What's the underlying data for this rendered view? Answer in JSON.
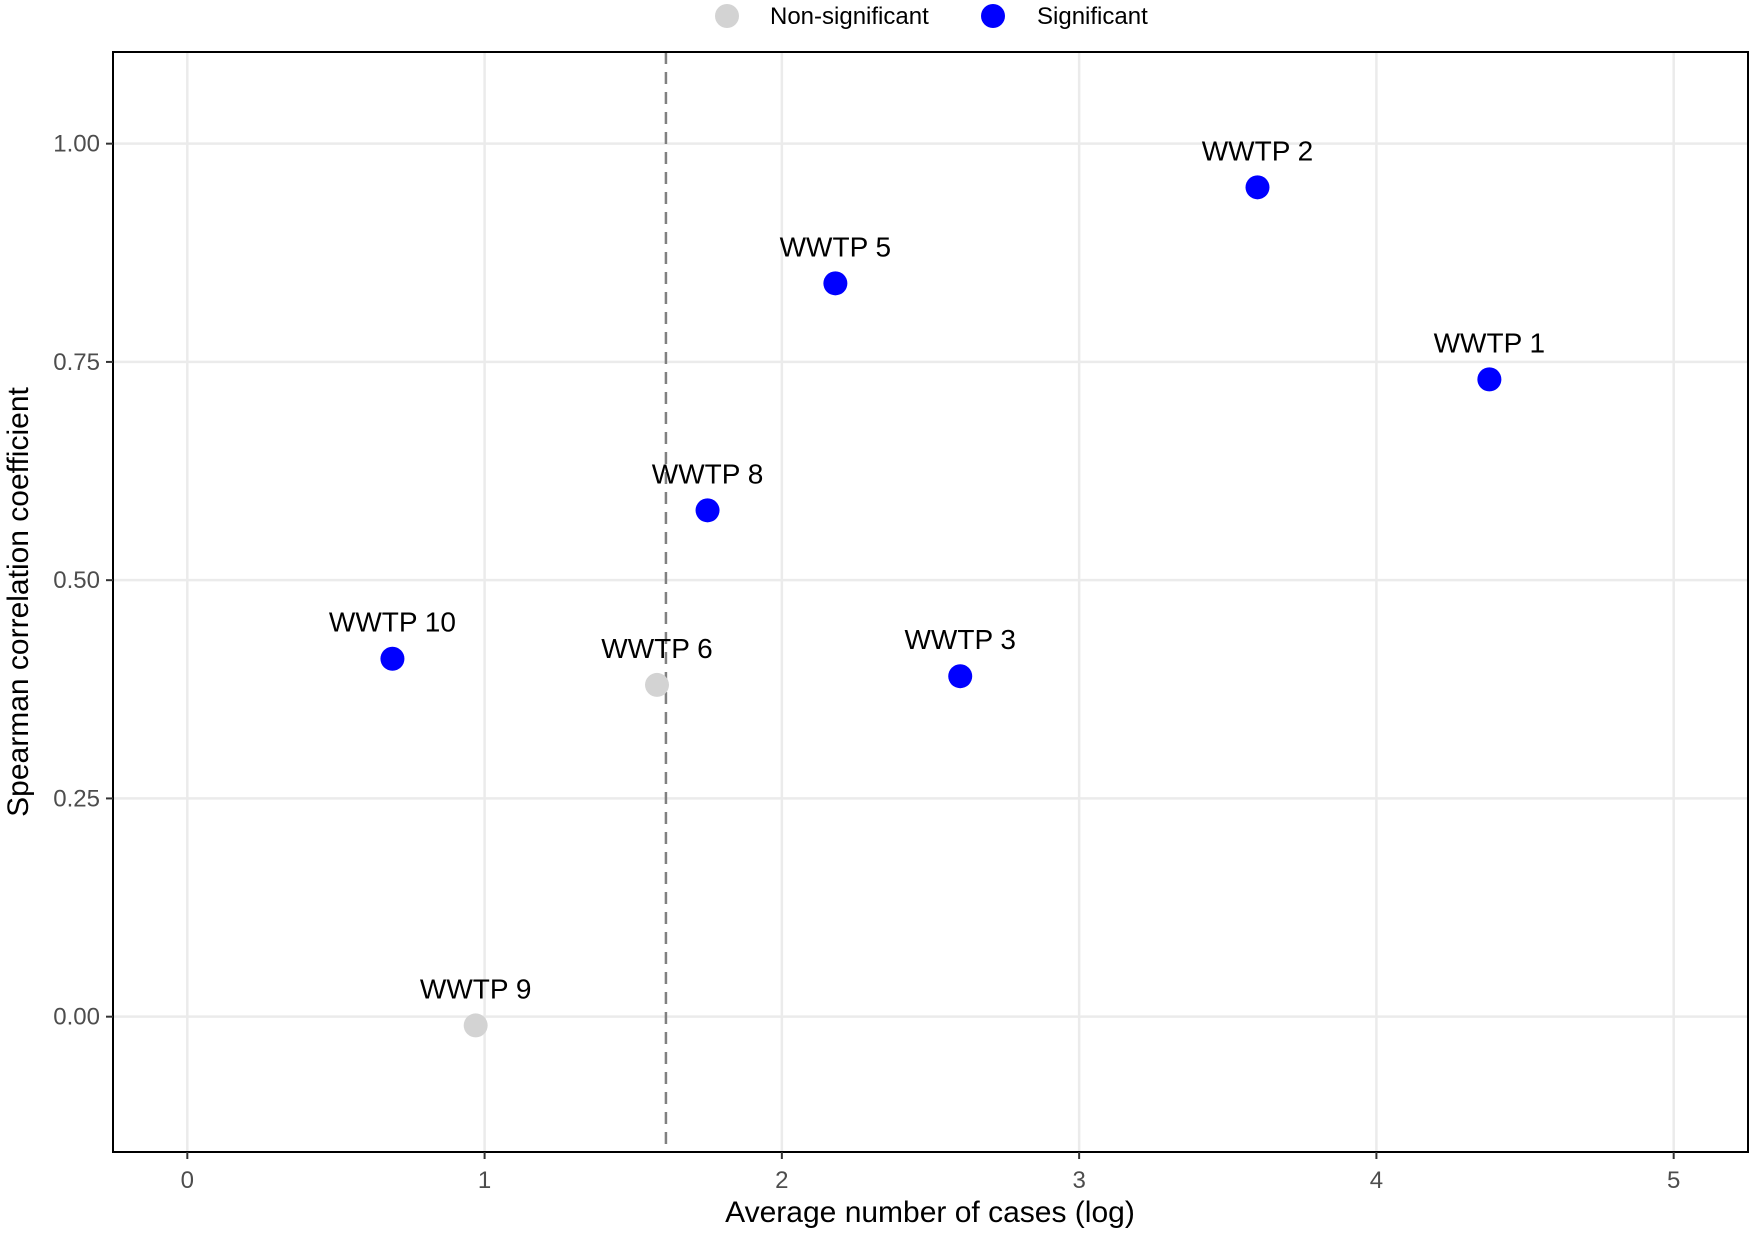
{
  "chart_data": {
    "type": "scatter",
    "title": "",
    "xlabel": "Average number of cases (log)",
    "ylabel": "Spearman correlation coefficient",
    "xlim": [
      -0.25,
      5.25
    ],
    "ylim": [
      -0.155,
      1.105
    ],
    "x_ticks": [
      0,
      1,
      2,
      3,
      4,
      5
    ],
    "x_tick_labels": [
      "0",
      "1",
      "2",
      "3",
      "4",
      "5"
    ],
    "y_ticks": [
      0,
      0.25,
      0.5,
      0.75,
      1.0
    ],
    "y_tick_labels": [
      "0.00",
      "0.25",
      "0.50",
      "0.75",
      "1.00"
    ],
    "grid": true,
    "legend": {
      "position": "top",
      "entries": [
        {
          "name": "Non-significant",
          "color": "#d3d3d3"
        },
        {
          "name": "Significant",
          "color": "#0000ff"
        }
      ]
    },
    "reference_line": {
      "orientation": "vertical",
      "x": 1.61,
      "style": "dashed",
      "color": "#808080"
    },
    "series": [
      {
        "name": "Non-significant",
        "color": "#d3d3d3",
        "points": [
          {
            "label": "WWTP 6",
            "x": 1.58,
            "y": 0.38
          },
          {
            "label": "WWTP 9",
            "x": 0.97,
            "y": -0.01
          }
        ]
      },
      {
        "name": "Significant",
        "color": "#0000ff",
        "points": [
          {
            "label": "WWTP 2",
            "x": 3.6,
            "y": 0.95
          },
          {
            "label": "WWTP 5",
            "x": 2.18,
            "y": 0.84
          },
          {
            "label": "WWTP 1",
            "x": 4.38,
            "y": 0.73
          },
          {
            "label": "WWTP 8",
            "x": 1.75,
            "y": 0.58
          },
          {
            "label": "WWTP 10",
            "x": 0.69,
            "y": 0.41
          },
          {
            "label": "WWTP 3",
            "x": 2.6,
            "y": 0.39
          }
        ]
      }
    ]
  }
}
